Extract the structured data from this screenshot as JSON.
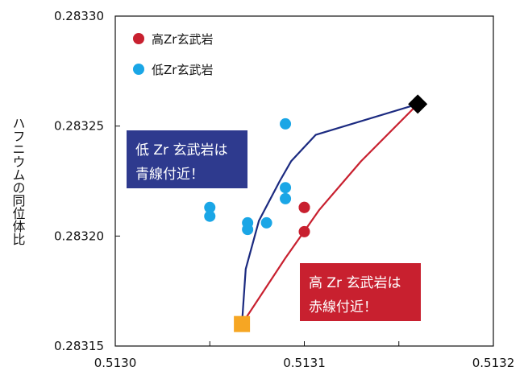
{
  "chart_data": {
    "type": "scatter",
    "title": "",
    "xlabel": "",
    "ylabel": "ハフニウムの同位体比",
    "xlim": [
      0.513,
      0.5132
    ],
    "ylim": [
      0.28315,
      0.2833
    ],
    "x_ticks": [
      0.513,
      0.51305,
      0.5131,
      0.51315,
      0.5132
    ],
    "x_tick_labels": [
      "0.5130",
      "",
      "0.5131",
      "",
      "0.5132"
    ],
    "y_ticks": [
      0.28315,
      0.2832,
      0.28325,
      0.2833
    ],
    "y_tick_labels": [
      "0.28315",
      "0.28320",
      "0.28325",
      "0.28330"
    ],
    "grid": false,
    "legend_position": "top-left",
    "series": [
      {
        "name": "高Zr玄武岩",
        "kind": "scatter",
        "color": "#c8202f",
        "points": [
          {
            "x": 0.5131,
            "y": 0.283202
          },
          {
            "x": 0.5131,
            "y": 0.283213
          },
          {
            "x": 0.5131,
            "y": 0.283213
          }
        ]
      },
      {
        "name": "低Zr玄武岩",
        "kind": "scatter",
        "color": "#1aa6e6",
        "points": [
          {
            "x": 0.51309,
            "y": 0.283251
          },
          {
            "x": 0.51305,
            "y": 0.283213
          },
          {
            "x": 0.51305,
            "y": 0.283209
          },
          {
            "x": 0.51307,
            "y": 0.283203
          },
          {
            "x": 0.51307,
            "y": 0.283206
          },
          {
            "x": 0.51308,
            "y": 0.283206
          },
          {
            "x": 0.51309,
            "y": 0.283217
          },
          {
            "x": 0.51309,
            "y": 0.283222
          }
        ]
      },
      {
        "name": "",
        "kind": "line",
        "color": "#1b2a80",
        "points": [
          {
            "x": 0.513067,
            "y": 0.28316
          },
          {
            "x": 0.513069,
            "y": 0.283185
          },
          {
            "x": 0.513076,
            "y": 0.283207
          },
          {
            "x": 0.513087,
            "y": 0.283225
          },
          {
            "x": 0.513093,
            "y": 0.283234
          },
          {
            "x": 0.513106,
            "y": 0.283246
          },
          {
            "x": 0.51316,
            "y": 0.28326
          }
        ]
      },
      {
        "name": "",
        "kind": "line",
        "color": "#c8202f",
        "points": [
          {
            "x": 0.513067,
            "y": 0.28316
          },
          {
            "x": 0.51309,
            "y": 0.28319
          },
          {
            "x": 0.513108,
            "y": 0.283212
          },
          {
            "x": 0.51313,
            "y": 0.283234
          },
          {
            "x": 0.51316,
            "y": 0.28326
          }
        ]
      },
      {
        "name": "",
        "kind": "marker",
        "shape": "diamond",
        "color": "#000000",
        "points": [
          {
            "x": 0.51316,
            "y": 0.28326
          }
        ]
      },
      {
        "name": "",
        "kind": "marker",
        "shape": "square",
        "color": "#f6a623",
        "points": [
          {
            "x": 0.513067,
            "y": 0.28316
          }
        ]
      }
    ],
    "annotations": [
      {
        "lines": [
          "低 Zr 玄武岩は",
          "青線付近！"
        ],
        "background": "#2e3a8e"
      },
      {
        "lines": [
          "高 Zr 玄武岩は",
          "赤線付近！"
        ],
        "background": "#c8202f"
      }
    ]
  }
}
